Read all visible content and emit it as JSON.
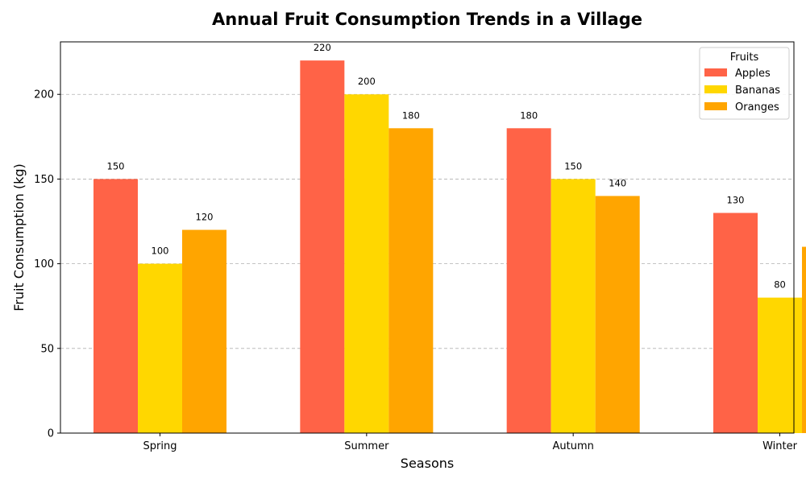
{
  "chart_data": {
    "type": "bar",
    "title": "Annual Fruit Consumption Trends in a Village",
    "xlabel": "Seasons",
    "ylabel": "Fruit Consumption (kg)",
    "categories": [
      "Spring",
      "Summer",
      "Autumn",
      "Winter"
    ],
    "series": [
      {
        "name": "Apples",
        "color": "#FF6347",
        "values": [
          150,
          220,
          180,
          130
        ]
      },
      {
        "name": "Bananas",
        "color": "#FFD700",
        "values": [
          100,
          200,
          150,
          80
        ]
      },
      {
        "name": "Oranges",
        "color": "#FFA500",
        "values": [
          120,
          180,
          140,
          110
        ]
      }
    ],
    "ylim": [
      0,
      231
    ],
    "yticks": [
      0,
      50,
      100,
      150,
      200
    ],
    "grid": "y-dashed",
    "legend": {
      "title": "Fruits",
      "placement": "top-right"
    }
  }
}
